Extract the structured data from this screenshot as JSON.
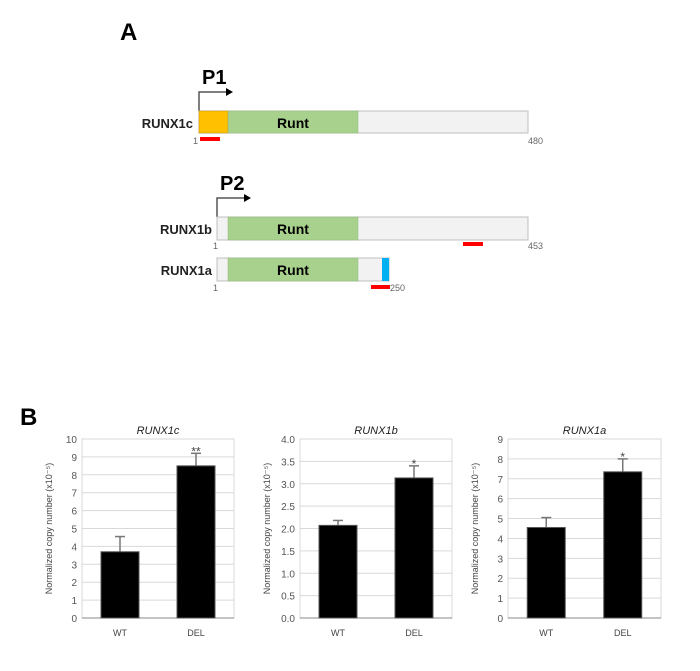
{
  "panel_a": {
    "label": "A",
    "promoters": [
      {
        "label": "P1"
      },
      {
        "label": "P2"
      }
    ],
    "domain_label": "Runt",
    "isoforms": [
      {
        "name": "RUNX1c",
        "start": "1",
        "end": "480"
      },
      {
        "name": "RUNX1b",
        "start": "1",
        "end": "453"
      },
      {
        "name": "RUNX1a",
        "start": "1",
        "end": "250"
      }
    ],
    "colors": {
      "n_terminal": "#FFC000",
      "runt": "#A9D18E",
      "body": "#F2F2F2",
      "c_terminal_1a": "#00B0F0",
      "probe": "#FF0000"
    }
  },
  "panel_b": {
    "label": "B"
  },
  "chart_data": [
    {
      "type": "bar",
      "title": "RUNX1c",
      "xlabel": "",
      "ylabel": "Normalized copy number (x10⁻⁵)",
      "categories": [
        "WT",
        "DEL"
      ],
      "values": [
        3.7,
        8.5
      ],
      "error_upper": [
        4.55,
        9.2
      ],
      "significance": [
        "",
        "**"
      ],
      "ylim": [
        0,
        10
      ],
      "yticks": [
        "0",
        "1",
        "2",
        "3",
        "4",
        "5",
        "6",
        "7",
        "8",
        "9",
        "10"
      ],
      "tick_values": [
        0,
        1,
        2,
        3,
        4,
        5,
        6,
        7,
        8,
        9,
        10
      ],
      "grid": true,
      "bar_color": "#000000"
    },
    {
      "type": "bar",
      "title": "RUNX1b",
      "xlabel": "",
      "ylabel": "Normalized copy number (x10⁻⁵)",
      "categories": [
        "WT",
        "DEL"
      ],
      "values": [
        2.07,
        3.13
      ],
      "error_upper": [
        2.18,
        3.4
      ],
      "significance": [
        "",
        "*"
      ],
      "ylim": [
        0,
        4
      ],
      "yticks": [
        "0.0",
        "0.5",
        "1.0",
        "1.5",
        "2.0",
        "2.5",
        "3.0",
        "3.5",
        "4.0"
      ],
      "tick_values": [
        0,
        0.5,
        1,
        1.5,
        2,
        2.5,
        3,
        3.5,
        4
      ],
      "grid": true,
      "bar_color": "#000000"
    },
    {
      "type": "bar",
      "title": "RUNX1a",
      "xlabel": "",
      "ylabel": "Normalized copy number (x10⁻⁵)",
      "categories": [
        "WT",
        "DEL"
      ],
      "values": [
        4.55,
        7.35
      ],
      "error_upper": [
        5.05,
        8.0
      ],
      "significance": [
        "",
        "*"
      ],
      "ylim": [
        0,
        9
      ],
      "yticks": [
        "0",
        "1",
        "2",
        "3",
        "4",
        "5",
        "6",
        "7",
        "8",
        "9"
      ],
      "tick_values": [
        0,
        1,
        2,
        3,
        4,
        5,
        6,
        7,
        8,
        9
      ],
      "grid": true,
      "bar_color": "#000000"
    }
  ]
}
